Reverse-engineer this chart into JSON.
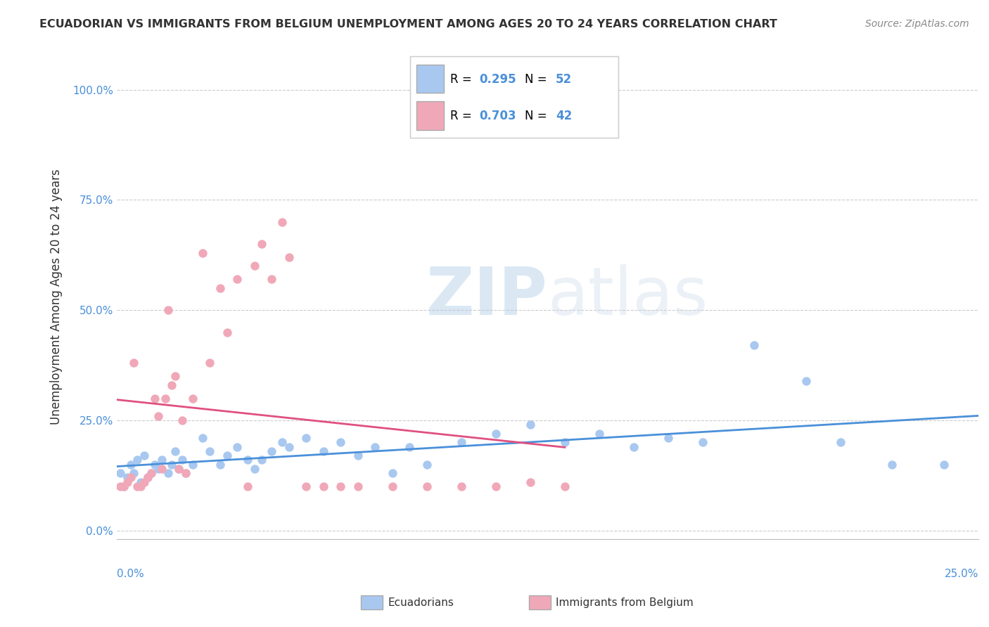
{
  "title": "ECUADORIAN VS IMMIGRANTS FROM BELGIUM UNEMPLOYMENT AMONG AGES 20 TO 24 YEARS CORRELATION CHART",
  "source": "Source: ZipAtlas.com",
  "ylabel": "Unemployment Among Ages 20 to 24 years",
  "ytick_values": [
    0.0,
    0.25,
    0.5,
    0.75,
    1.0
  ],
  "ytick_labels": [
    "0.0%",
    "25.0%",
    "50.0%",
    "75.0%",
    "100.0%"
  ],
  "xlim": [
    0.0,
    0.25
  ],
  "ylim": [
    -0.02,
    1.08
  ],
  "blue_R": 0.295,
  "blue_N": 52,
  "pink_R": 0.703,
  "pink_N": 42,
  "blue_color": "#a8c8f0",
  "pink_color": "#f0a8b8",
  "blue_line_color": "#4a90d9",
  "pink_line_color": "#e05080",
  "legend_label_blue": "Ecuadorians",
  "legend_label_pink": "Immigrants from Belgium",
  "watermark_zip": "ZIP",
  "watermark_atlas": "atlas",
  "background_color": "#ffffff",
  "grid_color": "#cccccc",
  "blue_scatter_x": [
    0.001,
    0.002,
    0.003,
    0.004,
    0.005,
    0.006,
    0.007,
    0.008,
    0.009,
    0.01,
    0.011,
    0.012,
    0.013,
    0.015,
    0.016,
    0.017,
    0.018,
    0.019,
    0.02,
    0.022,
    0.025,
    0.027,
    0.03,
    0.032,
    0.035,
    0.038,
    0.04,
    0.042,
    0.045,
    0.048,
    0.05,
    0.055,
    0.06,
    0.065,
    0.07,
    0.075,
    0.08,
    0.085,
    0.09,
    0.1,
    0.11,
    0.12,
    0.13,
    0.14,
    0.15,
    0.16,
    0.17,
    0.185,
    0.2,
    0.21,
    0.225,
    0.24
  ],
  "blue_scatter_y": [
    0.13,
    0.1,
    0.12,
    0.15,
    0.13,
    0.16,
    0.11,
    0.17,
    0.12,
    0.13,
    0.15,
    0.14,
    0.16,
    0.13,
    0.15,
    0.18,
    0.14,
    0.16,
    0.13,
    0.15,
    0.21,
    0.18,
    0.15,
    0.17,
    0.19,
    0.16,
    0.14,
    0.16,
    0.18,
    0.2,
    0.19,
    0.21,
    0.18,
    0.2,
    0.17,
    0.19,
    0.13,
    0.19,
    0.15,
    0.2,
    0.22,
    0.24,
    0.2,
    0.22,
    0.19,
    0.21,
    0.2,
    0.42,
    0.34,
    0.2,
    0.15,
    0.15
  ],
  "pink_scatter_x": [
    0.001,
    0.002,
    0.003,
    0.004,
    0.005,
    0.006,
    0.007,
    0.008,
    0.009,
    0.01,
    0.011,
    0.012,
    0.013,
    0.014,
    0.015,
    0.016,
    0.017,
    0.018,
    0.019,
    0.02,
    0.022,
    0.025,
    0.027,
    0.03,
    0.032,
    0.035,
    0.038,
    0.04,
    0.042,
    0.045,
    0.048,
    0.05,
    0.055,
    0.06,
    0.065,
    0.07,
    0.08,
    0.09,
    0.1,
    0.11,
    0.12,
    0.13
  ],
  "pink_scatter_y": [
    0.1,
    0.1,
    0.11,
    0.12,
    0.38,
    0.1,
    0.1,
    0.11,
    0.12,
    0.13,
    0.3,
    0.26,
    0.14,
    0.3,
    0.5,
    0.33,
    0.35,
    0.14,
    0.25,
    0.13,
    0.3,
    0.63,
    0.38,
    0.55,
    0.45,
    0.57,
    0.1,
    0.6,
    0.65,
    0.57,
    0.7,
    0.62,
    0.1,
    0.1,
    0.1,
    0.1,
    0.1,
    0.1,
    0.1,
    0.1,
    0.11,
    0.1
  ]
}
